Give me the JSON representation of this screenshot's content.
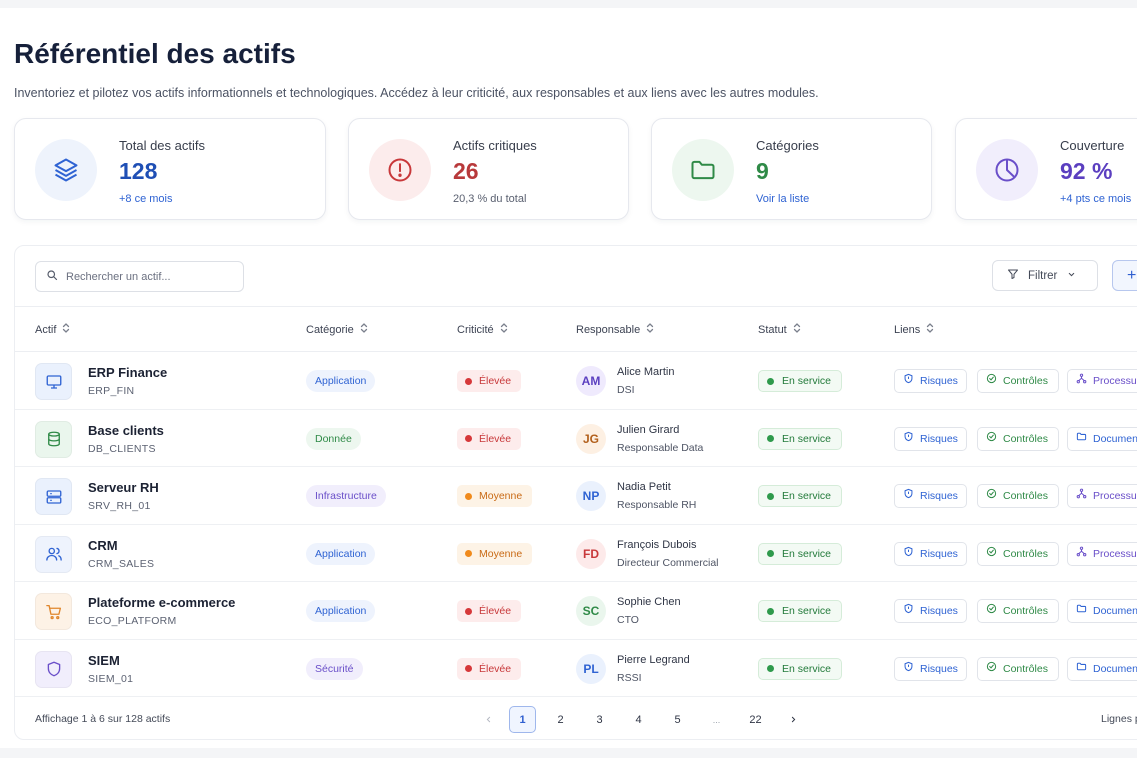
{
  "header": {
    "title": "Référentiel des actifs",
    "subtitle": "Inventoriez et pilotez vos actifs informationnels et technologiques. Accédez à leur criticité, aux responsables et aux liens avec les autres modules."
  },
  "stats": [
    {
      "label": "Total des actifs",
      "value": "128",
      "sub": "+8 ce mois",
      "icon": "layers-icon"
    },
    {
      "label": "Actifs critiques",
      "value": "26",
      "sub": "20,3 % du total",
      "icon": "alert-icon"
    },
    {
      "label": "Catégories",
      "value": "9",
      "sub": "Voir la liste",
      "icon": "folder-icon"
    },
    {
      "label": "Couverture",
      "value": "92 %",
      "sub": "+4 pts ce mois",
      "icon": "pie-chart-icon"
    }
  ],
  "toolbar": {
    "search_placeholder": "Rechercher un actif...",
    "filter_label": "Filtrer",
    "add_label": "+"
  },
  "table": {
    "columns": [
      "Actif",
      "Catégorie",
      "Criticité",
      "Responsable",
      "Statut",
      "Liens"
    ],
    "rows": [
      {
        "name": "ERP Finance",
        "code": "ERP_FIN",
        "icon": "monitor-icon",
        "category": "Application",
        "criticality": "Élevée",
        "initials": "AM",
        "resp_name": "Alice Martin",
        "resp_role": "DSI",
        "status": "En service",
        "links": [
          "Risques",
          "Contrôles",
          "Processus"
        ]
      },
      {
        "name": "Base clients",
        "code": "DB_CLIENTS",
        "icon": "database-icon",
        "category": "Donnée",
        "criticality": "Élevée",
        "initials": "JG",
        "resp_name": "Julien Girard",
        "resp_role": "Responsable Data",
        "status": "En service",
        "links": [
          "Risques",
          "Contrôles",
          "Documents"
        ]
      },
      {
        "name": "Serveur RH",
        "code": "SRV_RH_01",
        "icon": "server-icon",
        "category": "Infrastructure",
        "criticality": "Moyenne",
        "initials": "NP",
        "resp_name": "Nadia Petit",
        "resp_role": "Responsable RH",
        "status": "En service",
        "links": [
          "Risques",
          "Contrôles",
          "Processus"
        ]
      },
      {
        "name": "CRM",
        "code": "CRM_SALES",
        "icon": "users-icon",
        "category": "Application",
        "criticality": "Moyenne",
        "initials": "FD",
        "resp_name": "François Dubois",
        "resp_role": "Directeur Commercial",
        "status": "En service",
        "links": [
          "Risques",
          "Contrôles",
          "Processus"
        ]
      },
      {
        "name": "Plateforme e-commerce",
        "code": "ECO_PLATFORM",
        "icon": "cart-icon",
        "category": "Application",
        "criticality": "Élevée",
        "initials": "SC",
        "resp_name": "Sophie Chen",
        "resp_role": "CTO",
        "status": "En service",
        "links": [
          "Risques",
          "Contrôles",
          "Documents"
        ]
      },
      {
        "name": "SIEM",
        "code": "SIEM_01",
        "icon": "shield-icon",
        "category": "Sécurité",
        "criticality": "Élevée",
        "initials": "PL",
        "resp_name": "Pierre Legrand",
        "resp_role": "RSSI",
        "status": "En service",
        "links": [
          "Risques",
          "Contrôles",
          "Documents"
        ]
      }
    ]
  },
  "footer": {
    "summary": "Affichage 1 à 6 sur 128 actifs",
    "pages": [
      "1",
      "2",
      "3",
      "4",
      "5",
      "...",
      "22"
    ],
    "current_page": "1",
    "rows_label": "Lignes par page"
  }
}
